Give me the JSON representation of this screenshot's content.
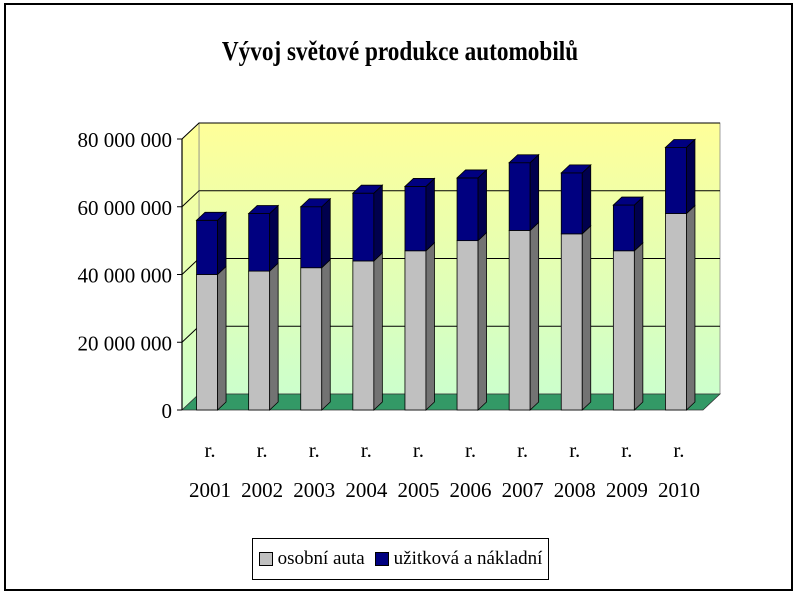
{
  "chart_data": {
    "type": "bar",
    "stacked": true,
    "three_d": true,
    "title": "Vývoj světové produkce automobilů",
    "categories_line1": [
      "r.",
      "r.",
      "r.",
      "r.",
      "r.",
      "r.",
      "r.",
      "r.",
      "r.",
      "r."
    ],
    "categories": [
      "2001",
      "2002",
      "2003",
      "2004",
      "2005",
      "2006",
      "2007",
      "2008",
      "2009",
      "2010"
    ],
    "series": [
      {
        "name": "osobní auta",
        "color": "#c0c0c0",
        "values": [
          40000000,
          41000000,
          42000000,
          44000000,
          47000000,
          50000000,
          53000000,
          52000000,
          47000000,
          58000000
        ]
      },
      {
        "name": "užitková a nákladní",
        "color": "#000080",
        "values": [
          16000000,
          17000000,
          18000000,
          20000000,
          19000000,
          18500000,
          20000000,
          18000000,
          13500000,
          19500000
        ]
      }
    ],
    "yticks": [
      "0",
      "20 000 000",
      "40 000 000",
      "60 000 000",
      "80 000 000"
    ],
    "ylim": [
      0,
      80000000
    ],
    "grid": true,
    "legend_position": "bottom",
    "colors": {
      "wall_top": "#ffff99",
      "wall_bottom": "#ccffcc",
      "floor": "#339966"
    }
  }
}
